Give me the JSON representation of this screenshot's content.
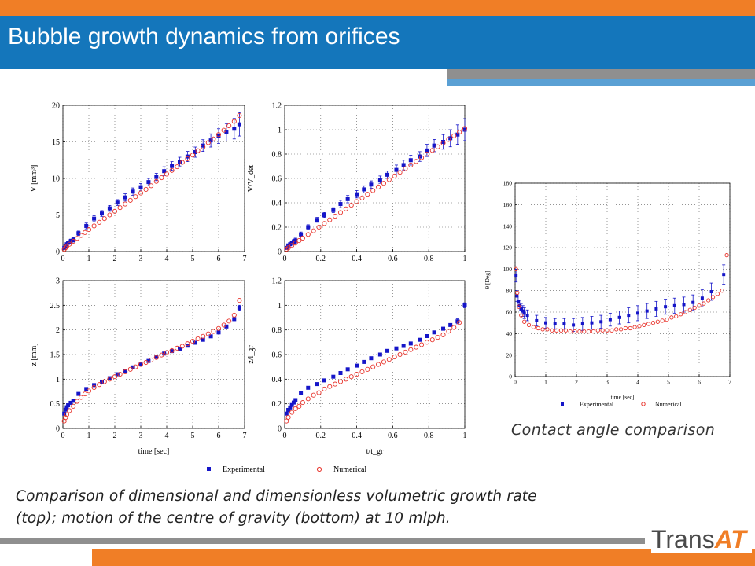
{
  "slide": {
    "title": "Bubble growth dynamics from orifices",
    "caption": "Comparison of dimensional and dimensionless volumetric growth rate (top); motion of the centre of gravity (bottom) at 10 mlph.",
    "side_caption": "Contact angle comparison",
    "logo_part1": "Trans",
    "logo_part2": "AT",
    "colors": {
      "orange": "#f07e26",
      "blue": "#1476bb",
      "gray": "#8f8f8f",
      "light_blue": "#5aa0d4",
      "experimental": "#1515c8",
      "numerical": "#e8342c"
    }
  },
  "legend_main": {
    "experimental": "Experimental",
    "numerical": "Numerical"
  },
  "legend_side": {
    "experimental": "Experimental",
    "numerical": "Numerical"
  },
  "chart_data": [
    {
      "type": "scatter",
      "xlabel": "",
      "ylabel": "V [mm³]",
      "xlim": [
        0,
        7
      ],
      "ylim": [
        0,
        20
      ],
      "xticks": [
        0,
        1,
        2,
        3,
        4,
        5,
        6,
        7
      ],
      "yticks": [
        0,
        5,
        10,
        15,
        20
      ],
      "grid": true,
      "series": [
        {
          "name": "Experimental",
          "marker": "square-errorbar",
          "x": [
            0.05,
            0.1,
            0.15,
            0.2,
            0.3,
            0.4,
            0.6,
            0.9,
            1.2,
            1.5,
            1.8,
            2.1,
            2.4,
            2.7,
            3.0,
            3.3,
            3.6,
            3.9,
            4.2,
            4.5,
            4.8,
            5.1,
            5.4,
            5.7,
            6.0,
            6.3,
            6.6,
            6.8
          ],
          "y": [
            0.5,
            0.8,
            1.0,
            1.2,
            1.4,
            1.6,
            2.5,
            3.5,
            4.5,
            5.2,
            5.9,
            6.7,
            7.4,
            8.2,
            8.8,
            9.5,
            10.2,
            11.0,
            11.7,
            12.3,
            13.0,
            13.6,
            14.5,
            15.2,
            15.8,
            16.3,
            16.8,
            17.4
          ],
          "err": [
            0.2,
            0.2,
            0.2,
            0.2,
            0.3,
            0.3,
            0.3,
            0.4,
            0.4,
            0.4,
            0.4,
            0.4,
            0.5,
            0.5,
            0.5,
            0.5,
            0.5,
            0.6,
            0.6,
            0.6,
            0.7,
            0.7,
            0.8,
            0.9,
            1.0,
            1.2,
            1.4,
            1.6
          ]
        },
        {
          "name": "Numerical",
          "marker": "circle",
          "x": [
            0.05,
            0.1,
            0.15,
            0.25,
            0.4,
            0.55,
            0.7,
            0.85,
            1.0,
            1.2,
            1.4,
            1.6,
            1.8,
            2.0,
            2.2,
            2.4,
            2.6,
            2.8,
            3.0,
            3.2,
            3.4,
            3.6,
            3.8,
            4.0,
            4.2,
            4.4,
            4.6,
            4.8,
            5.0,
            5.2,
            5.4,
            5.6,
            5.8,
            6.0,
            6.2,
            6.4,
            6.6,
            6.8
          ],
          "y": [
            0.3,
            0.5,
            0.7,
            1.0,
            1.4,
            1.8,
            2.2,
            2.6,
            3.0,
            3.5,
            4.0,
            4.5,
            5.0,
            5.5,
            6.0,
            6.5,
            7.0,
            7.5,
            8.0,
            8.5,
            9.0,
            9.6,
            10.1,
            10.6,
            11.1,
            11.6,
            12.2,
            12.7,
            13.2,
            13.8,
            14.3,
            14.9,
            15.4,
            16.0,
            16.6,
            17.2,
            17.8,
            18.6
          ]
        }
      ]
    },
    {
      "type": "scatter",
      "xlabel": "",
      "ylabel": "V/V_det",
      "xlim": [
        0,
        1
      ],
      "ylim": [
        0,
        1.2
      ],
      "xticks": [
        0,
        0.2,
        0.4,
        0.6,
        0.8,
        1
      ],
      "yticks": [
        0,
        0.2,
        0.4,
        0.6,
        0.8,
        1,
        1.2
      ],
      "grid": true,
      "series": [
        {
          "name": "Experimental",
          "marker": "square-errorbar",
          "x": [
            0.01,
            0.02,
            0.03,
            0.04,
            0.05,
            0.06,
            0.09,
            0.13,
            0.18,
            0.22,
            0.27,
            0.31,
            0.35,
            0.4,
            0.44,
            0.48,
            0.53,
            0.57,
            0.62,
            0.66,
            0.7,
            0.75,
            0.79,
            0.83,
            0.88,
            0.92,
            0.96,
            1.0
          ],
          "y": [
            0.03,
            0.05,
            0.06,
            0.07,
            0.08,
            0.09,
            0.14,
            0.2,
            0.26,
            0.3,
            0.34,
            0.39,
            0.43,
            0.47,
            0.51,
            0.55,
            0.59,
            0.63,
            0.67,
            0.71,
            0.75,
            0.78,
            0.83,
            0.87,
            0.9,
            0.93,
            0.96,
            1.0
          ],
          "err": [
            0.01,
            0.01,
            0.01,
            0.01,
            0.02,
            0.02,
            0.02,
            0.02,
            0.02,
            0.02,
            0.02,
            0.03,
            0.03,
            0.03,
            0.03,
            0.03,
            0.03,
            0.03,
            0.04,
            0.04,
            0.04,
            0.04,
            0.05,
            0.05,
            0.06,
            0.07,
            0.08,
            0.09
          ]
        },
        {
          "name": "Numerical",
          "marker": "circle",
          "x": [
            0.01,
            0.02,
            0.04,
            0.06,
            0.08,
            0.1,
            0.13,
            0.16,
            0.19,
            0.22,
            0.25,
            0.28,
            0.31,
            0.34,
            0.37,
            0.4,
            0.43,
            0.46,
            0.49,
            0.52,
            0.55,
            0.58,
            0.61,
            0.64,
            0.67,
            0.7,
            0.73,
            0.76,
            0.79,
            0.82,
            0.85,
            0.88,
            0.91,
            0.94,
            0.97,
            1.0
          ],
          "y": [
            0.02,
            0.03,
            0.05,
            0.07,
            0.09,
            0.11,
            0.14,
            0.17,
            0.2,
            0.23,
            0.26,
            0.29,
            0.32,
            0.35,
            0.38,
            0.41,
            0.44,
            0.47,
            0.5,
            0.53,
            0.56,
            0.59,
            0.62,
            0.65,
            0.68,
            0.71,
            0.74,
            0.77,
            0.8,
            0.83,
            0.86,
            0.89,
            0.92,
            0.95,
            0.98,
            1.01
          ]
        }
      ]
    },
    {
      "type": "scatter",
      "xlabel": "time [sec]",
      "ylabel": "z [mm]",
      "xlim": [
        0,
        7
      ],
      "ylim": [
        0,
        3
      ],
      "xticks": [
        0,
        1,
        2,
        3,
        4,
        5,
        6,
        7
      ],
      "yticks": [
        0,
        0.5,
        1,
        1.5,
        2,
        2.5,
        3
      ],
      "grid": true,
      "series": [
        {
          "name": "Experimental",
          "marker": "square-errorbar",
          "x": [
            0.05,
            0.1,
            0.15,
            0.2,
            0.3,
            0.4,
            0.6,
            0.9,
            1.2,
            1.5,
            1.8,
            2.1,
            2.4,
            2.7,
            3.0,
            3.3,
            3.6,
            3.9,
            4.2,
            4.5,
            4.8,
            5.1,
            5.4,
            5.7,
            6.0,
            6.3,
            6.6,
            6.8
          ],
          "y": [
            0.3,
            0.38,
            0.43,
            0.47,
            0.52,
            0.56,
            0.7,
            0.8,
            0.88,
            0.95,
            1.02,
            1.1,
            1.17,
            1.24,
            1.3,
            1.37,
            1.45,
            1.52,
            1.57,
            1.62,
            1.68,
            1.74,
            1.8,
            1.87,
            1.95,
            2.07,
            2.22,
            2.45
          ],
          "err": [
            0.02,
            0.02,
            0.02,
            0.02,
            0.02,
            0.02,
            0.02,
            0.02,
            0.02,
            0.02,
            0.02,
            0.02,
            0.02,
            0.02,
            0.02,
            0.02,
            0.02,
            0.02,
            0.02,
            0.02,
            0.02,
            0.02,
            0.02,
            0.02,
            0.03,
            0.03,
            0.03,
            0.05
          ]
        },
        {
          "name": "Numerical",
          "marker": "circle",
          "x": [
            0.05,
            0.1,
            0.15,
            0.25,
            0.4,
            0.55,
            0.7,
            0.85,
            1.0,
            1.2,
            1.4,
            1.6,
            1.8,
            2.0,
            2.2,
            2.4,
            2.6,
            2.8,
            3.0,
            3.2,
            3.4,
            3.6,
            3.8,
            4.0,
            4.2,
            4.4,
            4.6,
            4.8,
            5.0,
            5.2,
            5.4,
            5.6,
            5.8,
            6.0,
            6.2,
            6.4,
            6.6,
            6.8
          ],
          "y": [
            0.15,
            0.22,
            0.28,
            0.36,
            0.45,
            0.55,
            0.63,
            0.7,
            0.76,
            0.83,
            0.89,
            0.95,
            1.0,
            1.05,
            1.1,
            1.15,
            1.2,
            1.25,
            1.3,
            1.34,
            1.39,
            1.44,
            1.49,
            1.54,
            1.58,
            1.63,
            1.67,
            1.72,
            1.77,
            1.82,
            1.87,
            1.92,
            1.97,
            2.03,
            2.1,
            2.18,
            2.3,
            2.6
          ]
        }
      ]
    },
    {
      "type": "scatter",
      "xlabel": "t/t_gr",
      "ylabel": "z/l_gr",
      "xlim": [
        0,
        1
      ],
      "ylim": [
        0,
        1.2
      ],
      "xticks": [
        0,
        0.2,
        0.4,
        0.6,
        0.8,
        1
      ],
      "yticks": [
        0,
        0.2,
        0.4,
        0.6,
        0.8,
        1,
        1.2
      ],
      "grid": true,
      "series": [
        {
          "name": "Experimental",
          "marker": "square-errorbar",
          "x": [
            0.01,
            0.02,
            0.03,
            0.04,
            0.05,
            0.06,
            0.09,
            0.13,
            0.18,
            0.22,
            0.27,
            0.31,
            0.35,
            0.4,
            0.44,
            0.48,
            0.53,
            0.57,
            0.62,
            0.66,
            0.7,
            0.75,
            0.79,
            0.83,
            0.88,
            0.92,
            0.96,
            1.0
          ],
          "y": [
            0.12,
            0.15,
            0.17,
            0.19,
            0.21,
            0.23,
            0.29,
            0.33,
            0.36,
            0.39,
            0.42,
            0.45,
            0.48,
            0.51,
            0.54,
            0.57,
            0.6,
            0.63,
            0.65,
            0.67,
            0.69,
            0.72,
            0.75,
            0.78,
            0.81,
            0.84,
            0.87,
            1.0
          ],
          "err": [
            0.01,
            0.01,
            0.01,
            0.01,
            0.01,
            0.01,
            0.01,
            0.01,
            0.01,
            0.01,
            0.01,
            0.01,
            0.01,
            0.01,
            0.01,
            0.01,
            0.01,
            0.01,
            0.01,
            0.01,
            0.01,
            0.01,
            0.01,
            0.01,
            0.01,
            0.01,
            0.02,
            0.02
          ]
        },
        {
          "name": "Numerical",
          "marker": "circle",
          "x": [
            0.01,
            0.02,
            0.04,
            0.06,
            0.08,
            0.1,
            0.13,
            0.16,
            0.19,
            0.22,
            0.25,
            0.28,
            0.31,
            0.34,
            0.37,
            0.4,
            0.43,
            0.46,
            0.49,
            0.52,
            0.55,
            0.58,
            0.61,
            0.64,
            0.67,
            0.7,
            0.73,
            0.76,
            0.79,
            0.82,
            0.85,
            0.88,
            0.91,
            0.94,
            0.97
          ],
          "y": [
            0.06,
            0.09,
            0.13,
            0.16,
            0.18,
            0.21,
            0.24,
            0.27,
            0.29,
            0.32,
            0.34,
            0.36,
            0.38,
            0.4,
            0.42,
            0.44,
            0.46,
            0.48,
            0.5,
            0.52,
            0.54,
            0.56,
            0.58,
            0.6,
            0.62,
            0.64,
            0.66,
            0.68,
            0.7,
            0.72,
            0.74,
            0.76,
            0.79,
            0.82,
            0.86
          ]
        }
      ]
    },
    {
      "type": "scatter",
      "xlabel": "time [sec]",
      "ylabel": "θ [Deg]",
      "xlim": [
        0,
        7
      ],
      "ylim": [
        0,
        180
      ],
      "xticks": [
        0,
        1,
        2,
        3,
        4,
        5,
        6,
        7
      ],
      "yticks": [
        0,
        20,
        40,
        60,
        80,
        100,
        120,
        140,
        160,
        180
      ],
      "grid": true,
      "series": [
        {
          "name": "Experimental",
          "marker": "square-errorbar",
          "x": [
            0.03,
            0.06,
            0.1,
            0.15,
            0.2,
            0.25,
            0.3,
            0.4,
            0.7,
            1.0,
            1.3,
            1.6,
            1.9,
            2.2,
            2.5,
            2.8,
            3.1,
            3.4,
            3.7,
            4.0,
            4.3,
            4.6,
            4.9,
            5.2,
            5.5,
            5.8,
            6.1,
            6.4,
            6.8
          ],
          "y": [
            94,
            75,
            70,
            66,
            63,
            61,
            59,
            57,
            52,
            50,
            49,
            49,
            48,
            49,
            50,
            51,
            53,
            55,
            57,
            59,
            61,
            63,
            65,
            66,
            67,
            69,
            73,
            79,
            95
          ],
          "err": [
            6,
            5,
            5,
            5,
            5,
            5,
            5,
            5,
            5,
            5,
            5,
            5,
            6,
            6,
            6,
            6,
            6,
            6,
            7,
            7,
            7,
            7,
            7,
            7,
            7,
            7,
            8,
            8,
            9
          ]
        },
        {
          "name": "Numerical",
          "marker": "circle",
          "x": [
            0.03,
            0.07,
            0.12,
            0.2,
            0.3,
            0.45,
            0.6,
            0.75,
            0.9,
            1.05,
            1.2,
            1.35,
            1.5,
            1.65,
            1.8,
            1.95,
            2.1,
            2.25,
            2.4,
            2.55,
            2.7,
            2.85,
            3.0,
            3.15,
            3.3,
            3.45,
            3.6,
            3.75,
            3.9,
            4.05,
            4.2,
            4.35,
            4.5,
            4.65,
            4.8,
            4.95,
            5.1,
            5.25,
            5.4,
            5.55,
            5.7,
            5.85,
            6.0,
            6.15,
            6.3,
            6.45,
            6.6,
            6.75,
            6.9
          ],
          "y": [
            100,
            78,
            65,
            57,
            51,
            48,
            46,
            45,
            44,
            44,
            43,
            43,
            43,
            43,
            42,
            42,
            42,
            42,
            42,
            42,
            43,
            43,
            43,
            43,
            44,
            44,
            45,
            45,
            46,
            47,
            48,
            49,
            50,
            51,
            52,
            53,
            55,
            56,
            58,
            60,
            62,
            64,
            66,
            68,
            71,
            74,
            77,
            80,
            113
          ]
        }
      ]
    }
  ]
}
